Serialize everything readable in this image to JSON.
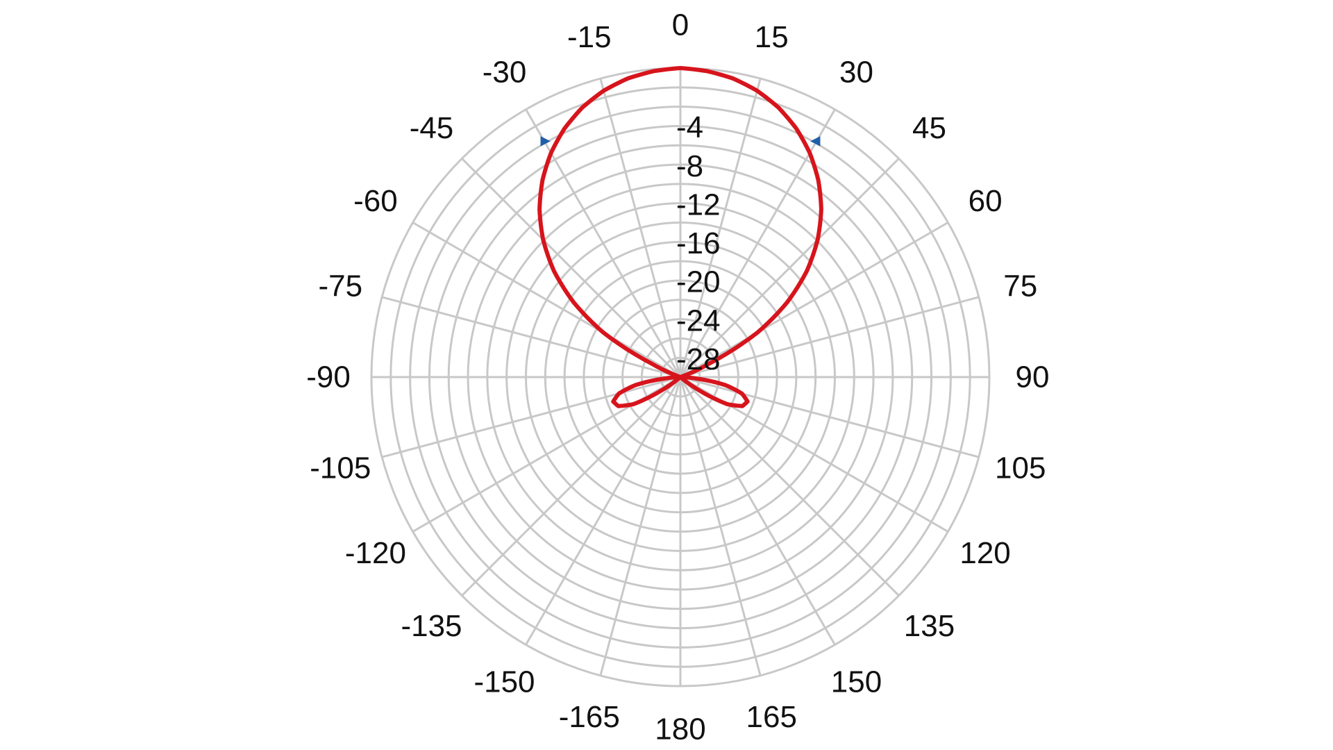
{
  "chart_data": {
    "type": "polar",
    "title": "",
    "angle_unit": "degrees",
    "angle_zero": "top",
    "angle_direction": "clockwise",
    "angle_ticks": [
      0,
      15,
      30,
      45,
      60,
      75,
      90,
      105,
      120,
      135,
      150,
      165,
      180,
      -165,
      -150,
      -135,
      -120,
      -105,
      -90,
      -75,
      -60,
      -45,
      -30,
      -15
    ],
    "radial_range": [
      -32,
      0
    ],
    "radial_grid_step": 2,
    "radial_tick_values": [
      -4,
      -8,
      -12,
      -16,
      -20,
      -24,
      -28
    ],
    "grid": true,
    "colors": {
      "grid": "#c8c8c8",
      "series": "#d7141c",
      "marker": "#1f5fa8"
    },
    "series": [
      {
        "type": "polar-line",
        "angles": [
          0,
          5,
          10,
          15,
          20,
          25,
          30,
          35,
          40,
          45,
          50,
          55,
          60,
          65,
          70,
          75,
          80,
          85,
          90,
          95,
          100,
          105,
          110,
          115,
          120,
          125,
          130,
          135,
          140,
          145,
          150,
          155,
          160,
          165,
          170,
          175,
          180
        ],
        "values": [
          0,
          -0.2,
          -0.6,
          -1.3,
          -2.3,
          -3.6,
          -5.2,
          -7.1,
          -9.3,
          -11.9,
          -14.9,
          -18.5,
          -22.8,
          -28.8,
          -32,
          -32,
          -32,
          -32,
          -32,
          -30.5,
          -27.3,
          -25.4,
          -24.6,
          -24.9,
          -26.4,
          -29.5,
          -32,
          -32,
          -32,
          -32,
          -32,
          -32,
          -32,
          -32,
          -32,
          -32,
          -32
        ],
        "symmetric": true
      }
    ],
    "markers": [
      {
        "angle": -30,
        "value": -3.8,
        "shape": "triangle"
      },
      {
        "angle": 30,
        "value": -3.8,
        "shape": "triangle"
      }
    ]
  }
}
